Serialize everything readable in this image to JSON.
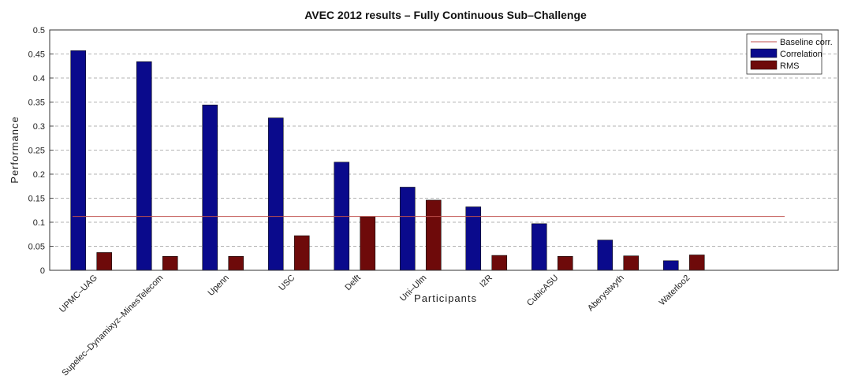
{
  "chart_data": {
    "type": "bar",
    "title": "AVEC 2012 results – Fully Continuous Sub–Challenge",
    "xlabel": "Participants",
    "ylabel": "Performance",
    "ylim": [
      0,
      0.5
    ],
    "yticks": [
      "0",
      "0.05",
      "0.1",
      "0.15",
      "0.2",
      "0.25",
      "0.3",
      "0.35",
      "0.4",
      "0.45",
      "0.5"
    ],
    "grid": true,
    "legend_position": "top-right",
    "categories": [
      "UPMC–UAG",
      "Supelec–Dynamixyz–MinesTelecom",
      "Upenn",
      "USC",
      "Delft",
      "Uni–Ulm",
      "I2R",
      "CubicASU",
      "Aberystwyth",
      "Waterloo2"
    ],
    "series": [
      {
        "name": "Correlation",
        "color": "#0a0a8c",
        "values": [
          0.457,
          0.434,
          0.344,
          0.317,
          0.225,
          0.173,
          0.132,
          0.097,
          0.063,
          0.02
        ]
      },
      {
        "name": "RMS",
        "color": "#6e0a0a",
        "values": [
          0.037,
          0.029,
          0.029,
          0.072,
          0.111,
          0.146,
          0.031,
          0.029,
          0.03,
          0.032
        ]
      }
    ],
    "baseline": {
      "name": "Baseline corr.",
      "value": 0.112,
      "color": "#c0504d"
    }
  }
}
